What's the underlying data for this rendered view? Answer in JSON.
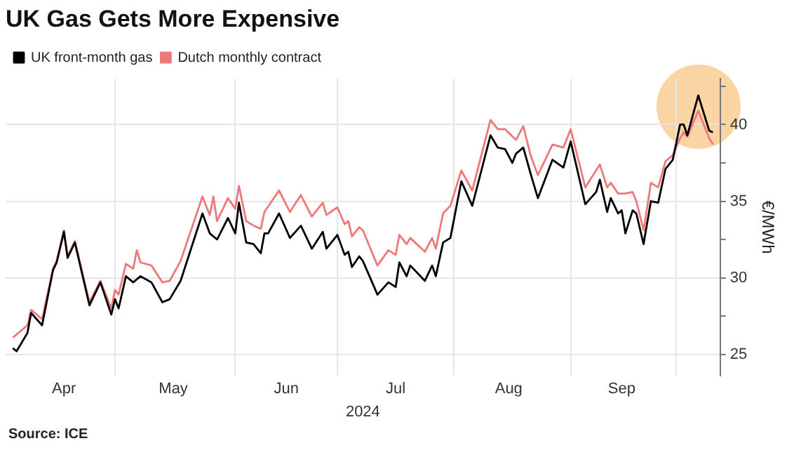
{
  "chart_data": {
    "type": "line",
    "title": "UK Gas Gets More Expensive",
    "xlabel": "2024",
    "ylabel": "€/MWh",
    "annotations": [
      "Source: ICE"
    ],
    "xlim": [
      "2024-03-30",
      "2024-10-12"
    ],
    "xticks": [
      {
        "value": "2024-04-15",
        "label": "Apr"
      },
      {
        "value": "2024-04-29",
        "label": null
      },
      {
        "value": "2024-05-15",
        "label": "May"
      },
      {
        "value": "2024-06-01",
        "label": null
      },
      {
        "value": "2024-06-15",
        "label": "Jun"
      },
      {
        "value": "2024-06-29",
        "label": null
      },
      {
        "value": "2024-07-15",
        "label": "Jul"
      },
      {
        "value": "2024-07-31",
        "label": null
      },
      {
        "value": "2024-08-15",
        "label": "Aug"
      },
      {
        "value": "2024-09-01",
        "label": null
      },
      {
        "value": "2024-09-15",
        "label": "Sep"
      },
      {
        "value": "2024-09-30",
        "label": null
      }
    ],
    "ylim": [
      23.6,
      43
    ],
    "yticks": [
      25,
      {
        "value": 27.5,
        "label": null
      },
      30,
      {
        "value": 32.5,
        "label": null
      },
      35,
      {
        "value": 37.5,
        "label": null
      },
      40,
      {
        "value": 42.5,
        "label": null
      }
    ],
    "grid": true,
    "legend": "top left",
    "marker": "none",
    "line_style": "solid",
    "series": [
      {
        "name": "UK front-month gas",
        "color": "#000000",
        "x": [
          "2024-04-01",
          "2024-04-02",
          "2024-04-05",
          "2024-04-06",
          "2024-04-09",
          "2024-04-12",
          "2024-04-13",
          "2024-04-15",
          "2024-04-16",
          "2024-04-18",
          "2024-04-22",
          "2024-04-25",
          "2024-04-28",
          "2024-04-29",
          "2024-04-30",
          "2024-05-02",
          "2024-05-04",
          "2024-05-06",
          "2024-05-09",
          "2024-05-12",
          "2024-05-14",
          "2024-05-17",
          "2024-05-23",
          "2024-05-25",
          "2024-05-27",
          "2024-05-30",
          "2024-06-01",
          "2024-06-02",
          "2024-06-04",
          "2024-06-06",
          "2024-06-08",
          "2024-06-09",
          "2024-06-10",
          "2024-06-13",
          "2024-06-16",
          "2024-06-19",
          "2024-06-22",
          "2024-06-25",
          "2024-06-26",
          "2024-06-29",
          "2024-07-01",
          "2024-07-02",
          "2024-07-03",
          "2024-07-05",
          "2024-07-06",
          "2024-07-10",
          "2024-07-13",
          "2024-07-15",
          "2024-07-16",
          "2024-07-18",
          "2024-07-19",
          "2024-07-23",
          "2024-07-25",
          "2024-07-26",
          "2024-07-28",
          "2024-07-30",
          "2024-08-02",
          "2024-08-05",
          "2024-08-10",
          "2024-08-12",
          "2024-08-14",
          "2024-08-16",
          "2024-08-17",
          "2024-08-19",
          "2024-08-21",
          "2024-08-23",
          "2024-08-27",
          "2024-08-30",
          "2024-09-01",
          "2024-09-05",
          "2024-09-08",
          "2024-09-09",
          "2024-09-11",
          "2024-09-12",
          "2024-09-14",
          "2024-09-15",
          "2024-09-16",
          "2024-09-18",
          "2024-09-19",
          "2024-09-21",
          "2024-09-23",
          "2024-09-25",
          "2024-09-27",
          "2024-09-29",
          "2024-10-01",
          "2024-10-02",
          "2024-10-03",
          "2024-10-06",
          "2024-10-09",
          "2024-10-10"
        ],
        "values": [
          25.4,
          25.2,
          26.4,
          27.7,
          26.9,
          30.5,
          31.0,
          33.0,
          31.3,
          32.3,
          28.2,
          29.7,
          27.6,
          28.6,
          28.0,
          30.1,
          29.7,
          30.1,
          29.7,
          28.4,
          28.6,
          29.8,
          34.2,
          32.9,
          32.5,
          33.9,
          32.9,
          34.9,
          32.3,
          32.2,
          31.6,
          32.9,
          32.9,
          34.2,
          32.6,
          33.4,
          31.9,
          33.0,
          31.9,
          32.8,
          31.5,
          31.7,
          30.7,
          31.4,
          31.1,
          28.9,
          29.7,
          29.4,
          31.0,
          30.1,
          30.8,
          29.8,
          30.8,
          30.1,
          32.3,
          32.6,
          36.3,
          34.7,
          39.3,
          38.5,
          38.4,
          37.5,
          38.1,
          38.5,
          36.8,
          35.2,
          37.7,
          37.2,
          38.9,
          34.8,
          35.6,
          36.4,
          34.3,
          35.2,
          34.2,
          34.4,
          32.9,
          34.4,
          34.2,
          32.2,
          35.0,
          34.9,
          37.1,
          37.7,
          40.0,
          40.0,
          39.3,
          41.9,
          39.6,
          39.5
        ]
      },
      {
        "name": "Dutch monthly contract",
        "color": "#f0787a",
        "x": [
          "2024-04-01",
          "2024-04-05",
          "2024-04-06",
          "2024-04-09",
          "2024-04-12",
          "2024-04-13",
          "2024-04-15",
          "2024-04-16",
          "2024-04-18",
          "2024-04-22",
          "2024-04-25",
          "2024-04-28",
          "2024-04-29",
          "2024-04-30",
          "2024-05-02",
          "2024-05-04",
          "2024-05-05",
          "2024-05-06",
          "2024-05-09",
          "2024-05-12",
          "2024-05-14",
          "2024-05-17",
          "2024-05-23",
          "2024-05-25",
          "2024-05-26",
          "2024-05-27",
          "2024-05-30",
          "2024-06-01",
          "2024-06-02",
          "2024-06-04",
          "2024-06-06",
          "2024-06-08",
          "2024-06-09",
          "2024-06-13",
          "2024-06-16",
          "2024-06-19",
          "2024-06-22",
          "2024-06-25",
          "2024-06-26",
          "2024-06-29",
          "2024-07-01",
          "2024-07-02",
          "2024-07-03",
          "2024-07-05",
          "2024-07-06",
          "2024-07-10",
          "2024-07-13",
          "2024-07-15",
          "2024-07-16",
          "2024-07-18",
          "2024-07-19",
          "2024-07-23",
          "2024-07-25",
          "2024-07-26",
          "2024-07-28",
          "2024-07-30",
          "2024-08-02",
          "2024-08-05",
          "2024-08-10",
          "2024-08-12",
          "2024-08-14",
          "2024-08-17",
          "2024-08-19",
          "2024-08-21",
          "2024-08-23",
          "2024-08-27",
          "2024-08-30",
          "2024-09-01",
          "2024-09-05",
          "2024-09-09",
          "2024-09-11",
          "2024-09-12",
          "2024-09-14",
          "2024-09-16",
          "2024-09-18",
          "2024-09-19",
          "2024-09-21",
          "2024-09-23",
          "2024-09-25",
          "2024-09-27",
          "2024-09-29",
          "2024-10-01",
          "2024-10-02",
          "2024-10-03",
          "2024-10-06",
          "2024-10-09",
          "2024-10-10"
        ],
        "values": [
          26.1,
          26.9,
          27.9,
          27.3,
          30.6,
          31.1,
          33.1,
          31.4,
          32.4,
          28.4,
          29.8,
          28.0,
          29.2,
          28.9,
          30.9,
          30.6,
          31.8,
          31.0,
          30.8,
          29.7,
          29.8,
          31.1,
          35.3,
          34.1,
          35.3,
          33.7,
          35.2,
          34.5,
          36.0,
          33.7,
          33.4,
          33.2,
          34.3,
          35.7,
          34.3,
          35.4,
          34.0,
          34.9,
          34.1,
          34.6,
          33.5,
          33.7,
          32.7,
          33.3,
          33.1,
          30.8,
          31.8,
          31.5,
          32.8,
          32.2,
          32.6,
          31.7,
          32.6,
          31.9,
          34.2,
          34.7,
          37.0,
          35.7,
          40.3,
          39.7,
          39.7,
          39.0,
          39.9,
          38.0,
          36.7,
          38.7,
          38.5,
          39.7,
          35.9,
          37.4,
          35.9,
          36.2,
          35.5,
          35.5,
          35.6,
          35.0,
          33.1,
          36.2,
          35.9,
          37.6,
          38.0,
          39.1,
          39.5,
          39.2,
          40.9,
          39.1,
          38.7
        ]
      }
    ]
  }
}
